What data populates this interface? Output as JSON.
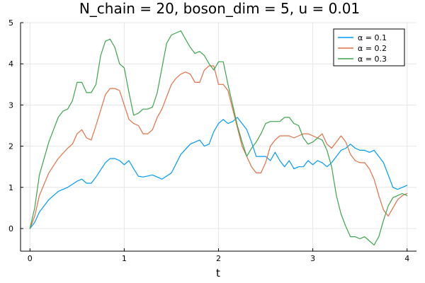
{
  "chart_data": {
    "type": "line",
    "title": "N_chain = 20, boson_dim = 5, u = 0.01",
    "xlabel": "t",
    "ylabel": "",
    "xlim": [
      -0.1,
      4.1
    ],
    "ylim": [
      -0.55,
      5.0
    ],
    "xticks": [
      0,
      1,
      2,
      3,
      4
    ],
    "yticks": [
      0,
      1,
      2,
      3,
      4,
      5
    ],
    "grid": true,
    "legend_position": "top-right",
    "series": [
      {
        "name": "α = 0.1",
        "color": "#009af9",
        "x": [
          0,
          0.05,
          0.1,
          0.2,
          0.3,
          0.4,
          0.5,
          0.55,
          0.6,
          0.65,
          0.7,
          0.8,
          0.85,
          0.9,
          0.95,
          1.0,
          1.05,
          1.1,
          1.15,
          1.2,
          1.3,
          1.35,
          1.4,
          1.5,
          1.6,
          1.7,
          1.75,
          1.8,
          1.85,
          1.9,
          1.95,
          2.0,
          2.05,
          2.1,
          2.15,
          2.2,
          2.25,
          2.3,
          2.35,
          2.4,
          2.45,
          2.5,
          2.55,
          2.6,
          2.65,
          2.7,
          2.75,
          2.8,
          2.85,
          2.9,
          2.95,
          3.0,
          3.05,
          3.1,
          3.15,
          3.2,
          3.25,
          3.3,
          3.35,
          3.4,
          3.45,
          3.5,
          3.55,
          3.6,
          3.65,
          3.7,
          3.75,
          3.8,
          3.85,
          3.9,
          3.95,
          4.0
        ],
        "y": [
          0,
          0.15,
          0.4,
          0.7,
          0.9,
          1.0,
          1.15,
          1.2,
          1.1,
          1.1,
          1.25,
          1.6,
          1.7,
          1.7,
          1.65,
          1.55,
          1.65,
          1.45,
          1.27,
          1.25,
          1.3,
          1.25,
          1.2,
          1.35,
          1.8,
          2.05,
          2.1,
          2.15,
          2.0,
          2.05,
          2.35,
          2.55,
          2.65,
          2.55,
          2.6,
          2.7,
          2.55,
          2.4,
          2.1,
          1.75,
          1.75,
          1.75,
          1.65,
          1.85,
          1.65,
          1.5,
          1.65,
          1.45,
          1.5,
          1.5,
          1.65,
          1.55,
          1.65,
          1.6,
          1.5,
          1.6,
          1.75,
          1.9,
          1.95,
          2.05,
          1.95,
          1.9,
          1.9,
          1.85,
          1.9,
          1.75,
          1.6,
          1.3,
          1.0,
          0.95,
          1.0,
          1.05
        ]
      },
      {
        "name": "α = 0.2",
        "color": "#e26f46",
        "x": [
          0,
          0.05,
          0.1,
          0.2,
          0.3,
          0.4,
          0.45,
          0.5,
          0.55,
          0.6,
          0.65,
          0.7,
          0.8,
          0.85,
          0.9,
          0.95,
          1.0,
          1.05,
          1.1,
          1.15,
          1.2,
          1.25,
          1.3,
          1.35,
          1.4,
          1.45,
          1.5,
          1.55,
          1.6,
          1.65,
          1.7,
          1.75,
          1.8,
          1.85,
          1.9,
          1.95,
          2.0,
          2.05,
          2.1,
          2.15,
          2.2,
          2.25,
          2.3,
          2.35,
          2.4,
          2.45,
          2.5,
          2.55,
          2.6,
          2.65,
          2.7,
          2.75,
          2.8,
          2.85,
          2.9,
          2.95,
          3.0,
          3.05,
          3.1,
          3.15,
          3.2,
          3.25,
          3.3,
          3.35,
          3.4,
          3.45,
          3.5,
          3.55,
          3.6,
          3.65,
          3.7,
          3.75,
          3.8,
          3.85,
          3.9,
          3.95,
          4.0
        ],
        "y": [
          0,
          0.3,
          0.8,
          1.35,
          1.7,
          1.95,
          2.05,
          2.3,
          2.4,
          2.2,
          2.15,
          2.5,
          3.25,
          3.4,
          3.4,
          3.35,
          3.0,
          2.65,
          2.55,
          2.5,
          2.3,
          2.3,
          2.4,
          2.7,
          2.9,
          3.2,
          3.5,
          3.65,
          3.75,
          3.8,
          3.75,
          3.55,
          3.55,
          3.85,
          3.95,
          3.95,
          3.5,
          3.5,
          3.35,
          2.9,
          2.45,
          2.0,
          1.75,
          1.5,
          1.35,
          1.35,
          1.6,
          2.0,
          2.15,
          2.25,
          2.25,
          2.25,
          2.2,
          2.25,
          2.3,
          2.3,
          2.25,
          2.2,
          2.3,
          2.05,
          1.95,
          2.1,
          2.25,
          2.1,
          1.8,
          1.65,
          1.6,
          1.6,
          1.45,
          1.2,
          0.8,
          0.45,
          0.3,
          0.5,
          0.7,
          0.8,
          0.85
        ]
      },
      {
        "name": "α = 0.3",
        "color": "#3da44d",
        "x": [
          0,
          0.05,
          0.1,
          0.2,
          0.3,
          0.35,
          0.4,
          0.45,
          0.5,
          0.55,
          0.6,
          0.65,
          0.7,
          0.75,
          0.8,
          0.85,
          0.9,
          0.95,
          1.0,
          1.05,
          1.1,
          1.15,
          1.2,
          1.25,
          1.3,
          1.35,
          1.4,
          1.45,
          1.5,
          1.55,
          1.6,
          1.65,
          1.7,
          1.75,
          1.8,
          1.85,
          1.9,
          1.95,
          2.0,
          2.05,
          2.1,
          2.15,
          2.2,
          2.25,
          2.3,
          2.35,
          2.4,
          2.45,
          2.5,
          2.55,
          2.6,
          2.65,
          2.7,
          2.75,
          2.8,
          2.85,
          2.9,
          2.95,
          3.0,
          3.05,
          3.1,
          3.15,
          3.2,
          3.25,
          3.3,
          3.35,
          3.4,
          3.45,
          3.5,
          3.55,
          3.6,
          3.65,
          3.7,
          3.75,
          3.8,
          3.85,
          3.9,
          3.95,
          4.0
        ],
        "y": [
          0,
          0.5,
          1.3,
          2.1,
          2.7,
          2.85,
          2.9,
          3.1,
          3.55,
          3.55,
          3.3,
          3.3,
          3.5,
          4.2,
          4.55,
          4.6,
          4.4,
          4.0,
          3.9,
          3.3,
          2.75,
          2.8,
          2.9,
          2.9,
          2.95,
          3.3,
          3.9,
          4.5,
          4.7,
          4.75,
          4.8,
          4.6,
          4.4,
          4.25,
          4.3,
          4.2,
          4.0,
          3.85,
          4.05,
          4.05,
          3.5,
          3.0,
          2.5,
          2.1,
          1.75,
          1.95,
          2.1,
          2.3,
          2.55,
          2.6,
          2.6,
          2.6,
          2.7,
          2.7,
          2.55,
          2.5,
          2.2,
          2.05,
          2.1,
          2.2,
          2.15,
          1.9,
          1.5,
          0.8,
          0.35,
          0.05,
          -0.2,
          -0.2,
          -0.25,
          -0.2,
          -0.3,
          -0.4,
          -0.2,
          0.2,
          0.55,
          0.75,
          0.8,
          0.85,
          0.8
        ]
      }
    ]
  }
}
